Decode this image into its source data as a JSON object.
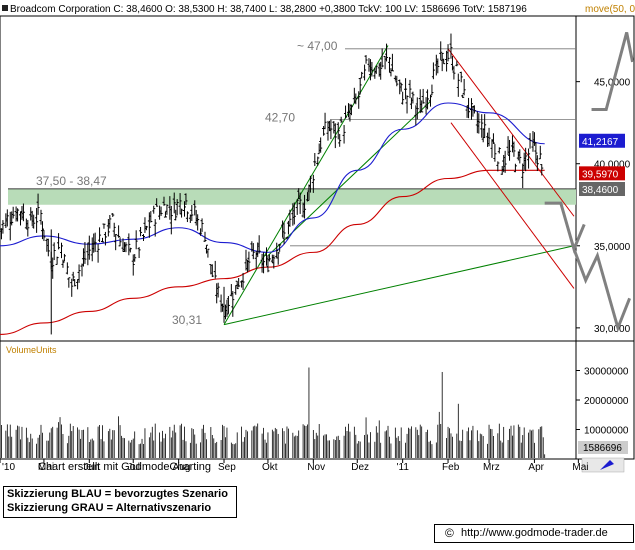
{
  "header": {
    "text": "Broadcom Corporation C: 38,4600 O: 38,5300 H: 38,7400 L: 38,2800 +0,3800 TckV: 100 LV: 1586696 TotV: 1587196",
    "ma_label": "move(50, 0)"
  },
  "volume_panel": {
    "title": "VolumeUnits"
  },
  "footer": {
    "credit": "Chart erstellt mit GodmodeCharting",
    "legend_blue": "Skizzierung BLAU = bevorzugtes Szenario",
    "legend_gray": "Skizzierung GRAU = Alternativszenario",
    "copyright_symbol": "©",
    "url": "http://www.godmode-trader.de"
  },
  "colors": {
    "price": "#000000",
    "ma_blue": "#1c1cd0",
    "ma_red": "#cc0000",
    "trend_green": "#008000",
    "channel_red": "#cc0000",
    "support_zone": "#b8dcb8",
    "scenario_gray": "#808080",
    "price_badge": "#666666"
  },
  "chart_data": {
    "type": "bar",
    "title": "Broadcom Corporation",
    "price_axis": {
      "ylim": [
        29.2,
        49.0
      ],
      "ticks": [
        "45,0000",
        "40,0000",
        "35,0000",
        "30,0000"
      ],
      "tick_values": [
        45,
        40,
        35,
        30
      ]
    },
    "volume_axis": {
      "ylim": [
        0,
        40000000
      ],
      "ticks": [
        "30000000",
        "20000000",
        "10000000"
      ],
      "tick_values": [
        30000000,
        20000000,
        10000000
      ]
    },
    "x_axis": {
      "labels": [
        "'10",
        "Mai",
        "Jun",
        "Jul",
        "Aug",
        "Sep",
        "Okt",
        "Nov",
        "Dez",
        "'11",
        "Feb",
        "Mrz",
        "Apr",
        "Mai"
      ]
    },
    "price_series": [
      {
        "d": "2010-04-01",
        "c": 35.9
      },
      {
        "d": "2010-04-08",
        "c": 36.8
      },
      {
        "d": "2010-04-15",
        "c": 37.2
      },
      {
        "d": "2010-04-22",
        "c": 36.5
      },
      {
        "d": "2010-04-29",
        "c": 36.9
      },
      {
        "d": "2010-05-06",
        "c": 34.2
      },
      {
        "d": "2010-05-13",
        "c": 35.0
      },
      {
        "d": "2010-05-20",
        "c": 32.6
      },
      {
        "d": "2010-05-27",
        "c": 33.8
      },
      {
        "d": "2010-06-03",
        "c": 34.9
      },
      {
        "d": "2010-06-10",
        "c": 35.6
      },
      {
        "d": "2010-06-17",
        "c": 36.4
      },
      {
        "d": "2010-06-24",
        "c": 35.1
      },
      {
        "d": "2010-07-01",
        "c": 34.3
      },
      {
        "d": "2010-07-08",
        "c": 35.5
      },
      {
        "d": "2010-07-15",
        "c": 36.8
      },
      {
        "d": "2010-07-22",
        "c": 37.4
      },
      {
        "d": "2010-07-29",
        "c": 37.2
      },
      {
        "d": "2010-08-05",
        "c": 37.9
      },
      {
        "d": "2010-08-12",
        "c": 36.9
      },
      {
        "d": "2010-08-19",
        "c": 35.8
      },
      {
        "d": "2010-08-26",
        "c": 32.6
      },
      {
        "d": "2010-09-02",
        "c": 31.2
      },
      {
        "d": "2010-09-09",
        "c": 32.4
      },
      {
        "d": "2010-09-16",
        "c": 33.6
      },
      {
        "d": "2010-09-23",
        "c": 34.6
      },
      {
        "d": "2010-09-30",
        "c": 33.8
      },
      {
        "d": "2010-10-07",
        "c": 34.9
      },
      {
        "d": "2010-10-14",
        "c": 35.8
      },
      {
        "d": "2010-10-21",
        "c": 37.2
      },
      {
        "d": "2010-10-28",
        "c": 37.8
      },
      {
        "d": "2010-11-04",
        "c": 40.6
      },
      {
        "d": "2010-11-11",
        "c": 42.3
      },
      {
        "d": "2010-11-18",
        "c": 41.8
      },
      {
        "d": "2010-11-25",
        "c": 42.7
      },
      {
        "d": "2010-12-02",
        "c": 44.1
      },
      {
        "d": "2010-12-09",
        "c": 46.2
      },
      {
        "d": "2010-12-16",
        "c": 45.7
      },
      {
        "d": "2010-12-23",
        "c": 46.4
      },
      {
        "d": "2010-12-30",
        "c": 44.5
      },
      {
        "d": "2011-01-06",
        "c": 44.1
      },
      {
        "d": "2011-01-13",
        "c": 43.2
      },
      {
        "d": "2011-01-20",
        "c": 44.6
      },
      {
        "d": "2011-01-27",
        "c": 46.2
      },
      {
        "d": "2011-02-03",
        "c": 46.7
      },
      {
        "d": "2011-02-10",
        "c": 44.8
      },
      {
        "d": "2011-02-17",
        "c": 43.1
      },
      {
        "d": "2011-02-24",
        "c": 42.2
      },
      {
        "d": "2011-03-03",
        "c": 41.4
      },
      {
        "d": "2011-03-10",
        "c": 40.1
      },
      {
        "d": "2011-03-17",
        "c": 40.7
      },
      {
        "d": "2011-03-24",
        "c": 39.9
      },
      {
        "d": "2011-03-31",
        "c": 41.1
      },
      {
        "d": "2011-04-05",
        "c": 40.3
      },
      {
        "d": "2011-04-08",
        "c": 38.46
      }
    ],
    "ma_blue_series": [
      {
        "d": "2010-04-01",
        "v": 35.0
      },
      {
        "d": "2010-05-01",
        "v": 35.6
      },
      {
        "d": "2010-06-01",
        "v": 35.1
      },
      {
        "d": "2010-07-01",
        "v": 35.4
      },
      {
        "d": "2010-08-01",
        "v": 36.1
      },
      {
        "d": "2010-09-01",
        "v": 35.2
      },
      {
        "d": "2010-10-01",
        "v": 34.6
      },
      {
        "d": "2010-11-01",
        "v": 36.7
      },
      {
        "d": "2010-12-01",
        "v": 39.6
      },
      {
        "d": "2011-01-01",
        "v": 42.1
      },
      {
        "d": "2011-02-01",
        "v": 43.7
      },
      {
        "d": "2011-03-01",
        "v": 43.1
      },
      {
        "d": "2011-04-08",
        "v": 41.2167
      }
    ],
    "ma_red_series": [
      {
        "d": "2010-04-01",
        "v": 29.6
      },
      {
        "d": "2010-05-01",
        "v": 30.3
      },
      {
        "d": "2010-06-01",
        "v": 31.0
      },
      {
        "d": "2010-07-01",
        "v": 31.8
      },
      {
        "d": "2010-08-01",
        "v": 32.5
      },
      {
        "d": "2010-09-01",
        "v": 33.0
      },
      {
        "d": "2010-10-01",
        "v": 33.7
      },
      {
        "d": "2010-11-01",
        "v": 34.6
      },
      {
        "d": "2010-12-01",
        "v": 36.3
      },
      {
        "d": "2011-01-01",
        "v": 38.0
      },
      {
        "d": "2011-02-01",
        "v": 39.1
      },
      {
        "d": "2011-03-01",
        "v": 39.6
      },
      {
        "d": "2011-04-08",
        "v": 39.597
      }
    ],
    "levels": [
      {
        "label": "~ 47,00",
        "value": 47.0
      },
      {
        "label": "42,70",
        "value": 42.7
      },
      {
        "label": "30,31",
        "value": 30.31
      }
    ],
    "support_zone": {
      "label": "37,50 - 38,47",
      "from": 37.5,
      "to": 38.47
    },
    "low_line": 35.0,
    "price_badges": [
      {
        "label": "41,2167",
        "value": 41.2167,
        "role": "ma_blue"
      },
      {
        "label": "39,5970",
        "value": 39.597,
        "role": "ma_red"
      },
      {
        "label": "38,4600",
        "value": 38.46,
        "role": "price"
      }
    ],
    "trendlines": [
      {
        "role": "trend_green",
        "from": {
          "d": "2010-09-01",
          "v": 30.2
        },
        "to": {
          "d": "2010-12-22",
          "v": 47.2
        }
      },
      {
        "role": "trend_green",
        "from": {
          "d": "2010-09-01",
          "v": 30.2
        },
        "to": {
          "d": "2011-04-28",
          "v": 35.0
        }
      },
      {
        "role": "trend_green",
        "from": {
          "d": "2010-10-01",
          "v": 34.4
        },
        "to": {
          "d": "2011-01-20",
          "v": 43.8
        }
      },
      {
        "role": "channel_red",
        "from": {
          "d": "2011-02-01",
          "v": 47.0
        },
        "to": {
          "d": "2011-04-28",
          "v": 36.8
        }
      },
      {
        "role": "channel_red",
        "from": {
          "d": "2011-02-03",
          "v": 42.5
        },
        "to": {
          "d": "2011-04-28",
          "v": 32.4
        }
      }
    ],
    "scenario_blue": [
      {
        "d": "2011-05-10",
        "v": 43.3
      },
      {
        "d": "2011-05-20",
        "v": 43.3
      },
      {
        "d": "2011-06-03",
        "v": 48.0
      },
      {
        "d": "2011-06-07",
        "v": 46.2
      }
    ],
    "scenario_gray": [
      {
        "d": "2011-04-08",
        "v": 37.6
      },
      {
        "d": "2011-04-19",
        "v": 37.6
      },
      {
        "d": "2011-04-28",
        "v": 34.8
      },
      {
        "d": "2011-05-05",
        "v": 36.3
      },
      {
        "d": "2011-04-28",
        "v": 34.8
      },
      {
        "d": "2011-05-06",
        "v": 32.9
      },
      {
        "d": "2011-05-14",
        "v": 34.4
      },
      {
        "d": "2011-05-28",
        "v": 30.0
      },
      {
        "d": "2011-06-05",
        "v": 31.8
      }
    ],
    "volume": {
      "last": 1586696,
      "last_label": "1586696"
    }
  }
}
